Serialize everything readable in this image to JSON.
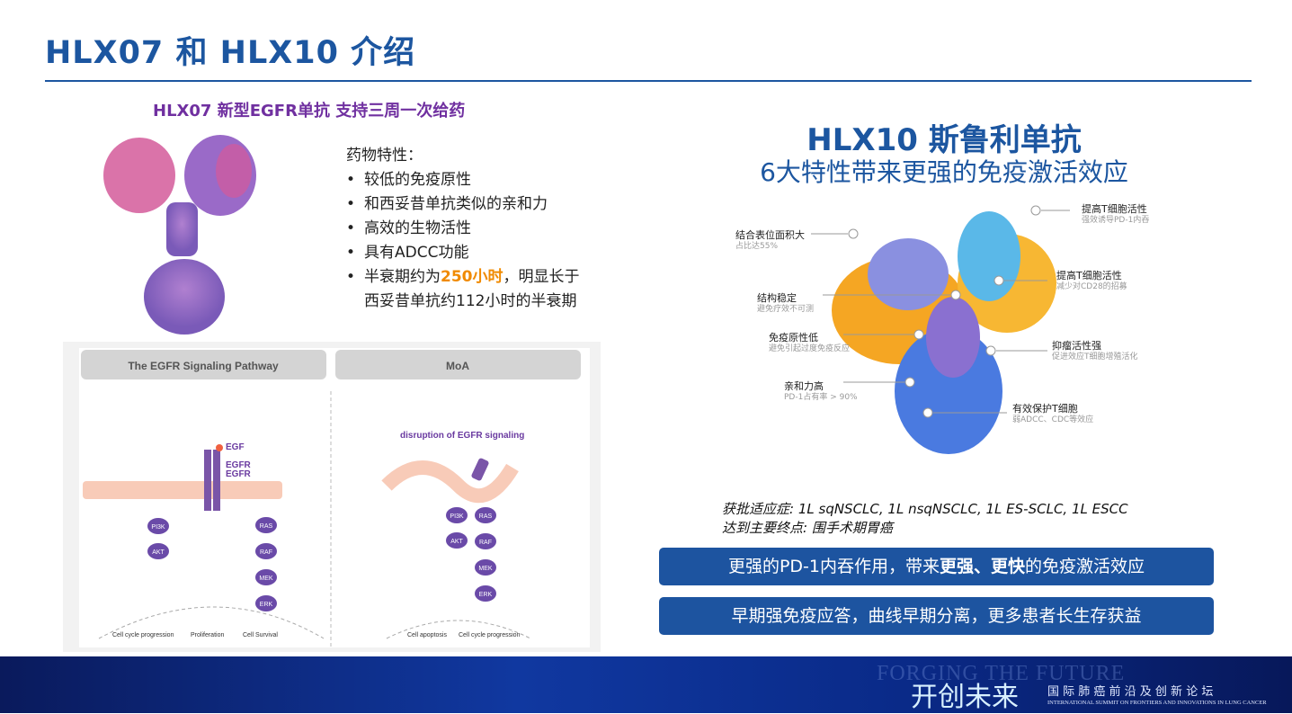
{
  "title": "HLX07 和 HLX10 介绍",
  "left": {
    "subtitle": "HLX07 新型EGFR单抗 支持三周一次给药",
    "props_heading": "药物特性：",
    "bullets": [
      "较低的免疫原性",
      "和西妥昔单抗类似的亲和力",
      "高效的生物活性",
      "具有ADCC功能"
    ],
    "bullet5_pre": "半衰期约为",
    "bullet5_hl": "250小时",
    "bullet5_post": "，明显长于西妥昔单抗约112小时的半衰期",
    "highlight_color": "#f08a00",
    "diagram": {
      "panel1_title": "The EGFR Signaling Pathway",
      "panel2_title": "MoA",
      "egf": "EGF",
      "egfr1": "EGFR",
      "egfr2": "EGFR",
      "p": "P",
      "nodes_left": [
        "PI3K",
        "AKT"
      ],
      "nodes_right": [
        "RAS",
        "RAF",
        "MEK",
        "ERK"
      ],
      "out1": [
        "Cell cycle progression",
        "Proliferation",
        "Cell Survival"
      ],
      "disruption": "disruption of EGFR signaling",
      "out2": [
        "Cell apoptosis",
        "Cell cycle progression"
      ]
    }
  },
  "right": {
    "title": "HLX10 斯鲁利单抗",
    "subtitle": "6大特性带来更强的免疫激活效应",
    "features": [
      {
        "title": "结合表位面积大",
        "desc": "占比达55%"
      },
      {
        "title": "结构稳定",
        "desc": "避免疗效不可测"
      },
      {
        "title": "免疫原性低",
        "desc": "避免引起过度免疫反应"
      },
      {
        "title": "亲和力高",
        "desc": "PD-1占有率 > 90%"
      },
      {
        "title": "提高T细胞活性",
        "desc": "强效诱导PD-1内吞"
      },
      {
        "title": "提高T细胞活性",
        "desc": "减少对CD28的招募"
      },
      {
        "title": "抑瘤活性强",
        "desc": "促进效应T细胞增殖活化"
      },
      {
        "title": "有效保护T细胞",
        "desc": "弱ADCC、CDC等效应"
      }
    ],
    "approval_label": "获批适应症:",
    "approval_value": " 1L sqNSCLC, 1L nsqNSCLC, 1L ES-SCLC, 1L ESCC",
    "endpoint_label": "达到主要终点:",
    "endpoint_value": " 围手术期胃癌",
    "box1_pre": "更强的PD-1内吞作用，带来",
    "box1_bold": "更强、更快",
    "box1_post": "的免疫激活效应",
    "box2": "早期强免疫应答，曲线早期分离，更多患者长生存获益"
  },
  "footer": {
    "bg_text": "FORGING THE FUTURE",
    "logo": "开创未来",
    "cn": "国 际 肺 癌 前 沿 及 创 新 论 坛",
    "en": "INTERNATIONAL SUMMIT ON FRONTIERS AND INNOVATIONS IN LUNG CANCER"
  }
}
